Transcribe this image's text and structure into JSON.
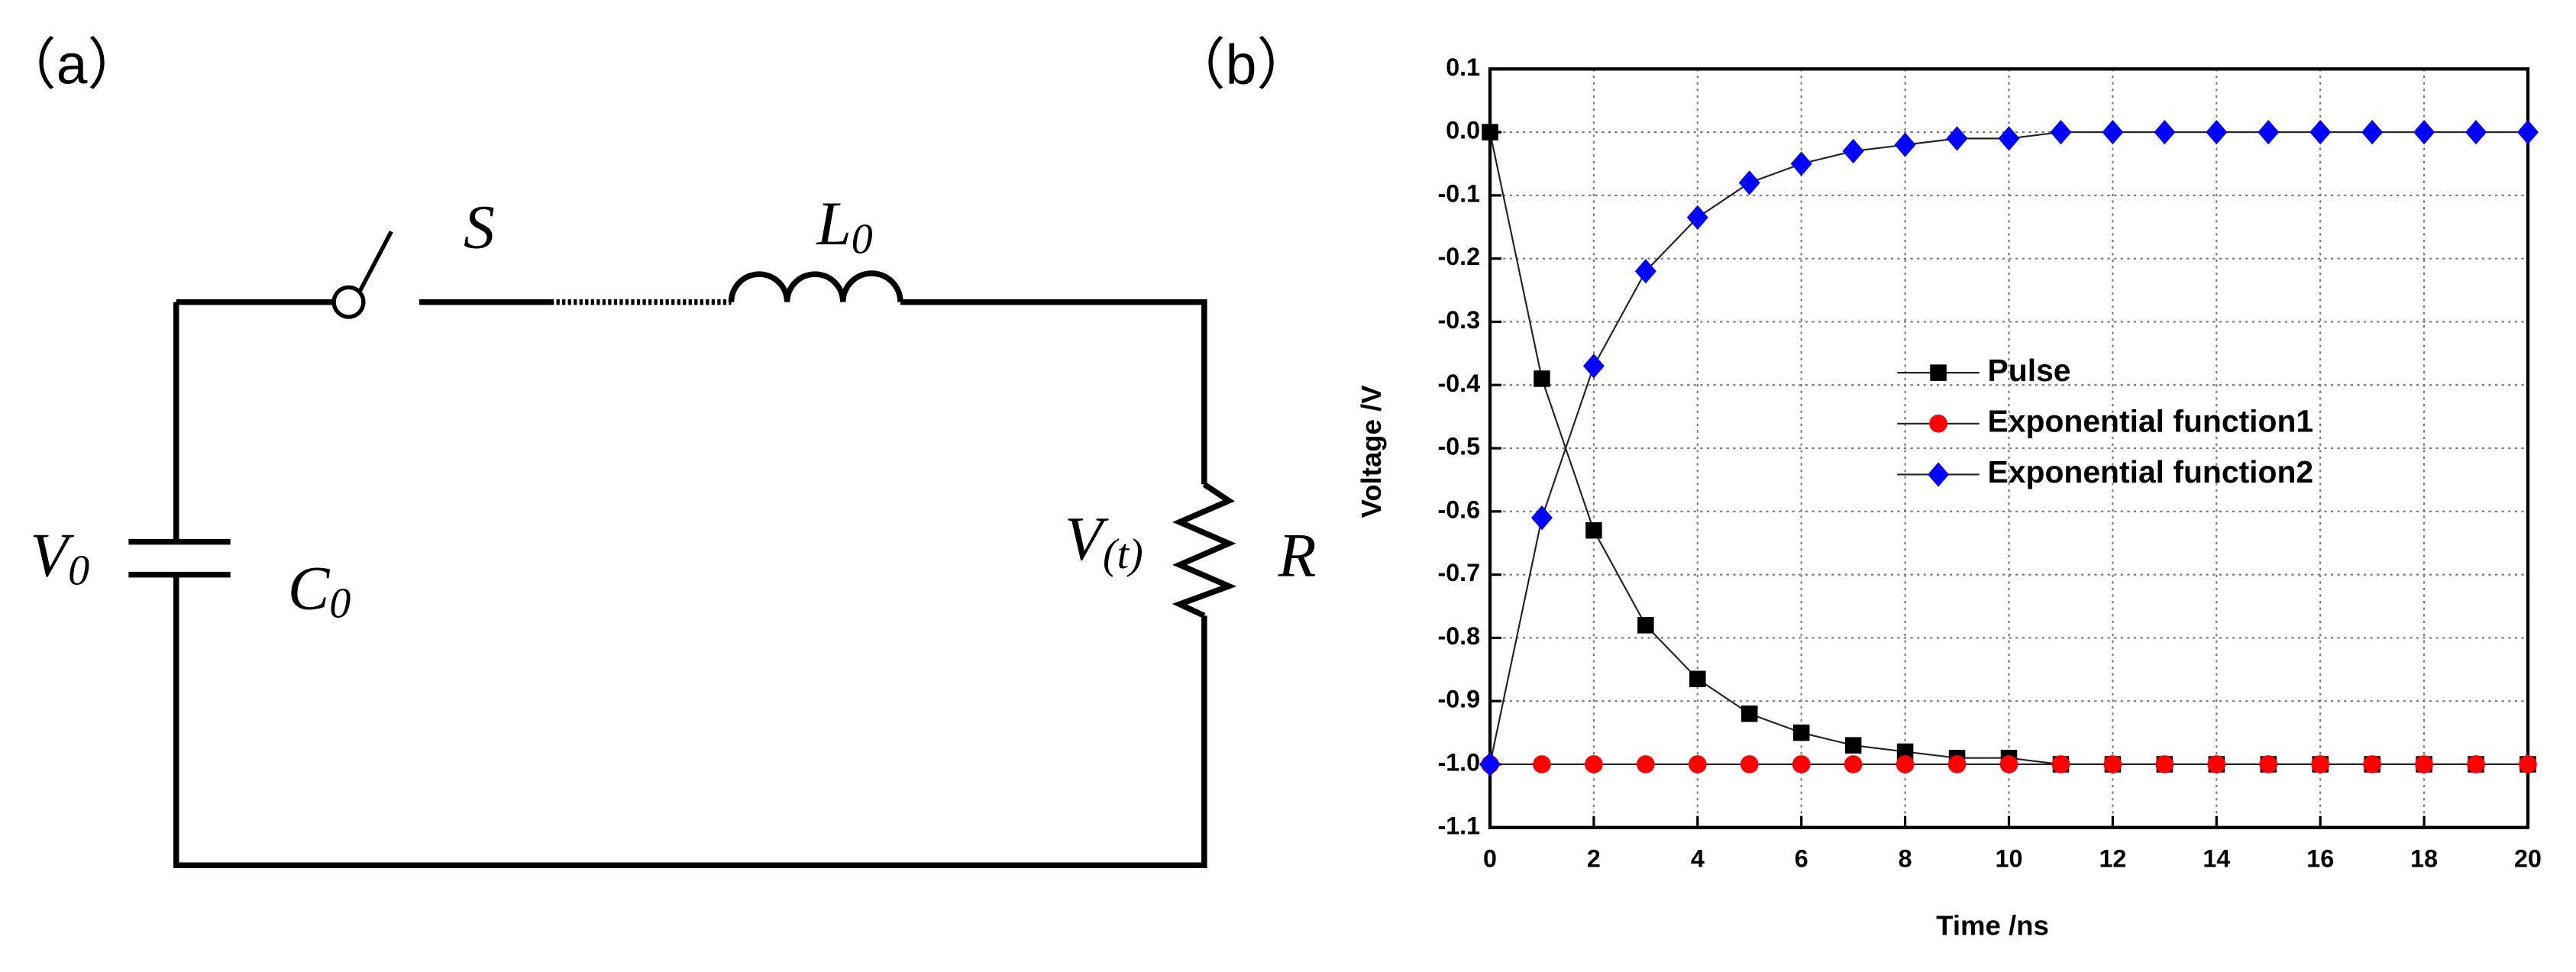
{
  "panel_labels": [
    "（a）",
    "（b）"
  ],
  "circuit": {
    "labels": [
      {
        "symbol": "S"
      },
      {
        "symbol": "L",
        "subscript": "0"
      },
      {
        "symbol": "V",
        "subscript": "0"
      },
      {
        "symbol": "C",
        "subscript": "0"
      },
      {
        "symbol": "V",
        "subscript": "(t)"
      },
      {
        "symbol": "R"
      }
    ]
  },
  "chart_data": {
    "type": "line",
    "x_label": "Time /ns",
    "y_label": "Voltage /V",
    "x": [
      0,
      1,
      2,
      3,
      4,
      5,
      6,
      7,
      8,
      9,
      10,
      11,
      12,
      13,
      14,
      15,
      16,
      17,
      18,
      19,
      20
    ],
    "series": [
      {
        "name": "Pulse",
        "color": "#000000",
        "marker": "square",
        "values": [
          0,
          -0.39,
          -0.63,
          -0.78,
          -0.865,
          -0.92,
          -0.95,
          -0.97,
          -0.98,
          -0.99,
          -0.99,
          -1.0,
          -1.0,
          -1.0,
          -1.0,
          -1.0,
          -1.0,
          -1.0,
          -1.0,
          -1.0,
          -1.0
        ]
      },
      {
        "name": "Exponential function1",
        "color": "#ff0000",
        "marker": "circle",
        "values": [
          -1,
          -1,
          -1,
          -1,
          -1,
          -1,
          -1,
          -1,
          -1,
          -1,
          -1,
          -1,
          -1,
          -1,
          -1,
          -1,
          -1,
          -1,
          -1,
          -1,
          -1
        ]
      },
      {
        "name": "Exponential function2",
        "color": "#0000ff",
        "marker": "diamond",
        "values": [
          -1,
          -0.61,
          -0.37,
          -0.22,
          -0.135,
          -0.08,
          -0.05,
          -0.03,
          -0.02,
          -0.01,
          -0.01,
          0,
          0,
          0,
          0,
          0,
          0,
          0,
          0,
          0,
          0
        ]
      }
    ],
    "xlim": [
      0,
      20
    ],
    "ylim": [
      -1.1,
      0.1
    ],
    "xticks": [
      0,
      2,
      4,
      6,
      8,
      10,
      12,
      14,
      16,
      18,
      20
    ],
    "yticks": [
      0.1,
      {
        "value": 0,
        "label": "0.0"
      },
      -0.1,
      -0.2,
      -0.3,
      -0.4,
      -0.5,
      -0.6,
      -0.7,
      -0.8,
      -0.9,
      {
        "value": -1,
        "label": "-1.0"
      },
      -1.1
    ],
    "grid": true,
    "legend": "center"
  }
}
